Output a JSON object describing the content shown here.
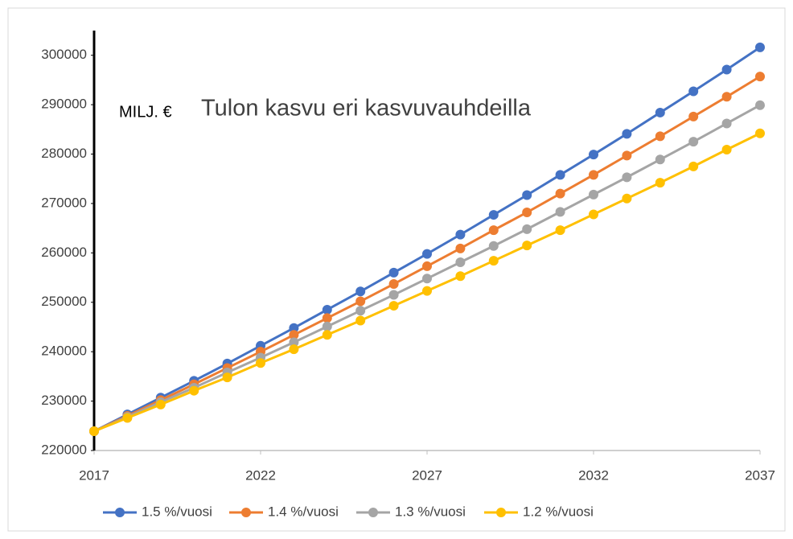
{
  "chart_data": {
    "type": "line",
    "unit_label": "MILJ. €",
    "title": "Tulon kasvu eri kasvuvauhdeilla",
    "x": [
      2017,
      2018,
      2019,
      2020,
      2021,
      2022,
      2023,
      2024,
      2025,
      2026,
      2027,
      2028,
      2029,
      2030,
      2031,
      2032,
      2033,
      2034,
      2035,
      2036,
      2037
    ],
    "xlim": [
      2017,
      2037
    ],
    "xticks": [
      2017,
      2022,
      2027,
      2032,
      2037
    ],
    "ylim": [
      220000,
      305000
    ],
    "yticks": [
      220000,
      230000,
      240000,
      250000,
      260000,
      270000,
      280000,
      290000,
      300000
    ],
    "grid": false,
    "legend": "bottom",
    "series": [
      {
        "name": "1.5 %/vuosi",
        "color": "#4472c4",
        "values": [
          223900,
          227300,
          230700,
          234100,
          237600,
          241200,
          244800,
          248500,
          252200,
          256000,
          259800,
          263700,
          267700,
          271700,
          275800,
          279900,
          284100,
          288400,
          292700,
          297100,
          301600
        ]
      },
      {
        "name": "1.4 %/vuosi",
        "color": "#ed7d31",
        "values": [
          223900,
          227000,
          230200,
          233400,
          236700,
          240000,
          243400,
          246800,
          250200,
          253700,
          257300,
          260900,
          264600,
          268200,
          272000,
          275800,
          279700,
          283600,
          287600,
          291600,
          295700
        ]
      },
      {
        "name": "1.3 %/vuosi",
        "color": "#a5a5a5",
        "values": [
          223900,
          226800,
          229800,
          232700,
          235800,
          238800,
          241900,
          245100,
          248300,
          251500,
          254800,
          258100,
          261400,
          264800,
          268300,
          271800,
          275300,
          278900,
          282500,
          286200,
          289900
        ]
      },
      {
        "name": "1.2 %/vuosi",
        "color": "#ffc000",
        "values": [
          223900,
          226600,
          229300,
          232100,
          234800,
          237700,
          240500,
          243400,
          246300,
          249300,
          252300,
          255300,
          258400,
          261500,
          264600,
          267800,
          271000,
          274200,
          277500,
          280900,
          284200
        ]
      }
    ]
  }
}
